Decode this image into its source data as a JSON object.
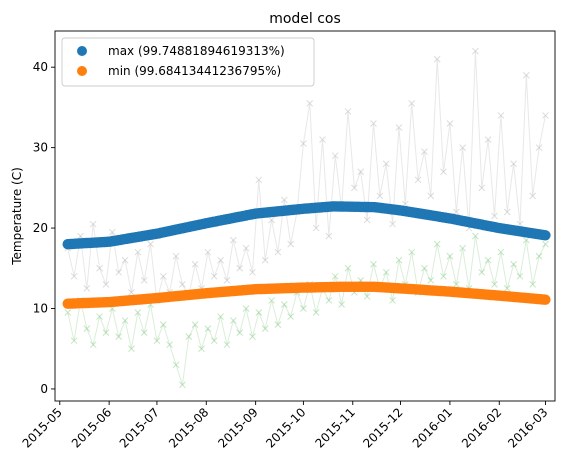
{
  "chart_data": {
    "type": "scatter",
    "title": "model cos",
    "xlabel": "",
    "ylabel": "Temperature (C)",
    "x_range": [
      "2015-04-28",
      "2016-03-07"
    ],
    "ylim": [
      -1.5,
      44.5
    ],
    "x_ticks": [
      "2015-05",
      "2015-06",
      "2015-07",
      "2015-08",
      "2015-09",
      "2015-10",
      "2015-11",
      "2015-12",
      "2016-01",
      "2016-02",
      "2016-03"
    ],
    "y_ticks": [
      0,
      10,
      20,
      30,
      40
    ],
    "grid": false,
    "legend_position": "top-left",
    "series": [
      {
        "name": "max (99.74881894619313%)",
        "kind": "model",
        "color": "#1f77b4",
        "points": [
          [
            "2015-05-06",
            18.0
          ],
          [
            "2015-06-01",
            18.3
          ],
          [
            "2015-07-01",
            19.3
          ],
          [
            "2015-08-01",
            20.6
          ],
          [
            "2015-09-01",
            21.8
          ],
          [
            "2015-10-01",
            22.4
          ],
          [
            "2015-10-20",
            22.7
          ],
          [
            "2015-11-15",
            22.6
          ],
          [
            "2015-12-01",
            22.2
          ],
          [
            "2016-01-01",
            21.2
          ],
          [
            "2016-02-01",
            20.0
          ],
          [
            "2016-03-01",
            19.1
          ]
        ]
      },
      {
        "name": "min (99.68413441236795%)",
        "kind": "model",
        "color": "#ff7f0e",
        "points": [
          [
            "2015-05-06",
            10.6
          ],
          [
            "2015-06-01",
            10.8
          ],
          [
            "2015-07-01",
            11.3
          ],
          [
            "2015-08-01",
            11.9
          ],
          [
            "2015-09-01",
            12.4
          ],
          [
            "2015-10-01",
            12.6
          ],
          [
            "2015-10-25",
            12.7
          ],
          [
            "2015-11-15",
            12.7
          ],
          [
            "2015-12-01",
            12.5
          ],
          [
            "2016-01-01",
            12.1
          ],
          [
            "2016-02-01",
            11.6
          ],
          [
            "2016-03-01",
            11.1
          ]
        ]
      },
      {
        "name": "",
        "kind": "observed",
        "color": "#808080",
        "points": [
          [
            "2015-05-06",
            17.5
          ],
          [
            "2015-05-10",
            14.0
          ],
          [
            "2015-05-14",
            19.0
          ],
          [
            "2015-05-18",
            12.5
          ],
          [
            "2015-05-22",
            20.5
          ],
          [
            "2015-05-26",
            15.0
          ],
          [
            "2015-05-30",
            13.0
          ],
          [
            "2015-06-03",
            19.5
          ],
          [
            "2015-06-07",
            14.5
          ],
          [
            "2015-06-11",
            16.0
          ],
          [
            "2015-06-15",
            12.0
          ],
          [
            "2015-06-19",
            17.0
          ],
          [
            "2015-06-23",
            13.5
          ],
          [
            "2015-06-27",
            18.0
          ],
          [
            "2015-07-01",
            11.0
          ],
          [
            "2015-07-05",
            14.0
          ],
          [
            "2015-07-09",
            12.0
          ],
          [
            "2015-07-13",
            16.5
          ],
          [
            "2015-07-17",
            13.0
          ],
          [
            "2015-07-21",
            11.5
          ],
          [
            "2015-07-25",
            15.5
          ],
          [
            "2015-07-29",
            12.5
          ],
          [
            "2015-08-02",
            17.0
          ],
          [
            "2015-08-06",
            14.0
          ],
          [
            "2015-08-10",
            16.0
          ],
          [
            "2015-08-14",
            13.5
          ],
          [
            "2015-08-18",
            18.5
          ],
          [
            "2015-08-22",
            15.0
          ],
          [
            "2015-08-26",
            17.5
          ],
          [
            "2015-08-30",
            14.5
          ],
          [
            "2015-09-03",
            26.0
          ],
          [
            "2015-09-07",
            16.0
          ],
          [
            "2015-09-11",
            21.0
          ],
          [
            "2015-09-15",
            17.0
          ],
          [
            "2015-09-19",
            23.5
          ],
          [
            "2015-09-23",
            18.0
          ],
          [
            "2015-09-27",
            22.0
          ],
          [
            "2015-10-01",
            30.5
          ],
          [
            "2015-10-05",
            35.5
          ],
          [
            "2015-10-09",
            20.0
          ],
          [
            "2015-10-13",
            31.0
          ],
          [
            "2015-10-17",
            19.0
          ],
          [
            "2015-10-21",
            29.0
          ],
          [
            "2015-10-25",
            22.5
          ],
          [
            "2015-10-29",
            34.5
          ],
          [
            "2015-11-02",
            25.0
          ],
          [
            "2015-11-06",
            27.0
          ],
          [
            "2015-11-10",
            21.0
          ],
          [
            "2015-11-14",
            33.0
          ],
          [
            "2015-11-18",
            24.0
          ],
          [
            "2015-11-22",
            28.0
          ],
          [
            "2015-11-26",
            20.5
          ],
          [
            "2015-11-30",
            32.5
          ],
          [
            "2015-12-04",
            23.0
          ],
          [
            "2015-12-08",
            35.5
          ],
          [
            "2015-12-12",
            26.0
          ],
          [
            "2015-12-16",
            29.5
          ],
          [
            "2015-12-20",
            24.0
          ],
          [
            "2015-12-24",
            41.0
          ],
          [
            "2015-12-28",
            27.0
          ],
          [
            "2016-01-01",
            33.0
          ],
          [
            "2016-01-05",
            22.0
          ],
          [
            "2016-01-09",
            30.0
          ],
          [
            "2016-01-13",
            20.0
          ],
          [
            "2016-01-17",
            42.0
          ],
          [
            "2016-01-21",
            25.0
          ],
          [
            "2016-01-25",
            31.0
          ],
          [
            "2016-01-29",
            21.5
          ],
          [
            "2016-02-02",
            34.0
          ],
          [
            "2016-02-06",
            22.0
          ],
          [
            "2016-02-10",
            28.0
          ],
          [
            "2016-02-14",
            20.5
          ],
          [
            "2016-02-18",
            39.0
          ],
          [
            "2016-02-22",
            24.0
          ],
          [
            "2016-02-26",
            30.0
          ],
          [
            "2016-03-01",
            34.0
          ]
        ]
      },
      {
        "name": "",
        "kind": "observed",
        "color": "#2ca02c",
        "points": [
          [
            "2015-05-06",
            9.5
          ],
          [
            "2015-05-10",
            6.0
          ],
          [
            "2015-05-14",
            11.0
          ],
          [
            "2015-05-18",
            7.5
          ],
          [
            "2015-05-22",
            5.5
          ],
          [
            "2015-05-26",
            9.0
          ],
          [
            "2015-05-30",
            7.0
          ],
          [
            "2015-06-03",
            10.0
          ],
          [
            "2015-06-07",
            6.5
          ],
          [
            "2015-06-11",
            8.5
          ],
          [
            "2015-06-15",
            5.0
          ],
          [
            "2015-06-19",
            9.5
          ],
          [
            "2015-06-23",
            7.0
          ],
          [
            "2015-06-27",
            10.5
          ],
          [
            "2015-07-01",
            6.0
          ],
          [
            "2015-07-05",
            8.0
          ],
          [
            "2015-07-09",
            5.5
          ],
          [
            "2015-07-13",
            3.0
          ],
          [
            "2015-07-17",
            0.5
          ],
          [
            "2015-07-21",
            6.5
          ],
          [
            "2015-07-25",
            8.0
          ],
          [
            "2015-07-29",
            5.0
          ],
          [
            "2015-08-02",
            7.5
          ],
          [
            "2015-08-06",
            6.0
          ],
          [
            "2015-08-10",
            9.0
          ],
          [
            "2015-08-14",
            5.5
          ],
          [
            "2015-08-18",
            8.5
          ],
          [
            "2015-08-22",
            7.0
          ],
          [
            "2015-08-26",
            10.0
          ],
          [
            "2015-08-30",
            6.5
          ],
          [
            "2015-09-03",
            9.5
          ],
          [
            "2015-09-07",
            7.5
          ],
          [
            "2015-09-11",
            11.0
          ],
          [
            "2015-09-15",
            8.0
          ],
          [
            "2015-09-19",
            10.5
          ],
          [
            "2015-09-23",
            9.0
          ],
          [
            "2015-09-27",
            12.0
          ],
          [
            "2015-10-01",
            10.0
          ],
          [
            "2015-10-05",
            13.0
          ],
          [
            "2015-10-09",
            9.5
          ],
          [
            "2015-10-13",
            12.5
          ],
          [
            "2015-10-17",
            11.0
          ],
          [
            "2015-10-21",
            14.0
          ],
          [
            "2015-10-25",
            10.5
          ],
          [
            "2015-10-29",
            15.0
          ],
          [
            "2015-11-02",
            12.0
          ],
          [
            "2015-11-06",
            13.5
          ],
          [
            "2015-11-10",
            11.5
          ],
          [
            "2015-11-14",
            15.5
          ],
          [
            "2015-11-18",
            12.5
          ],
          [
            "2015-11-22",
            14.5
          ],
          [
            "2015-11-26",
            11.0
          ],
          [
            "2015-11-30",
            16.0
          ],
          [
            "2015-12-04",
            13.0
          ],
          [
            "2015-12-08",
            17.0
          ],
          [
            "2015-12-12",
            12.0
          ],
          [
            "2015-12-16",
            15.0
          ],
          [
            "2015-12-20",
            13.5
          ],
          [
            "2015-12-24",
            18.0
          ],
          [
            "2015-12-28",
            14.0
          ],
          [
            "2016-01-01",
            16.5
          ],
          [
            "2016-01-05",
            13.0
          ],
          [
            "2016-01-09",
            17.5
          ],
          [
            "2016-01-13",
            12.5
          ],
          [
            "2016-01-17",
            19.0
          ],
          [
            "2016-01-21",
            14.5
          ],
          [
            "2016-01-25",
            16.0
          ],
          [
            "2016-01-29",
            13.0
          ],
          [
            "2016-02-02",
            17.0
          ],
          [
            "2016-02-06",
            12.5
          ],
          [
            "2016-02-10",
            15.5
          ],
          [
            "2016-02-14",
            14.0
          ],
          [
            "2016-02-18",
            18.5
          ],
          [
            "2016-02-22",
            13.0
          ],
          [
            "2016-02-26",
            16.5
          ],
          [
            "2016-03-01",
            18.0
          ]
        ]
      }
    ]
  }
}
